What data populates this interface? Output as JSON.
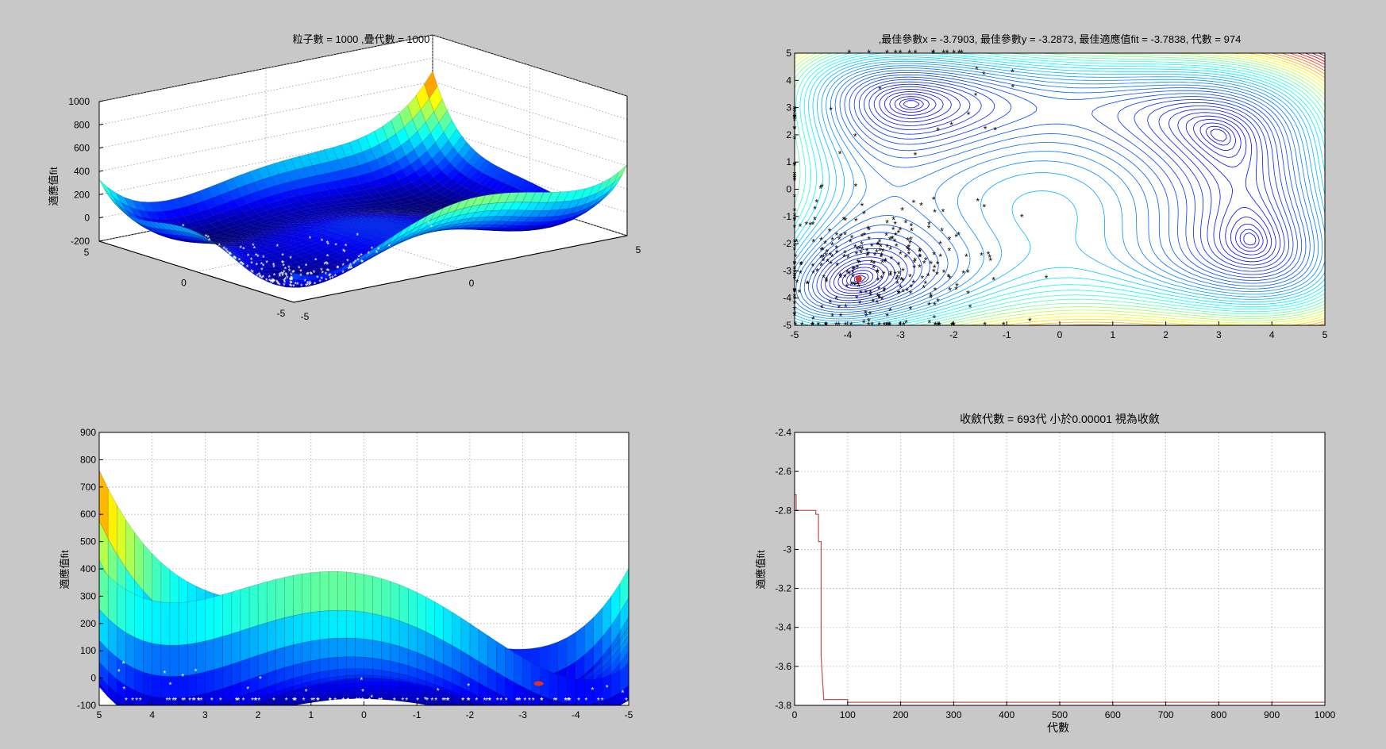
{
  "figure_background": "#c8c8c8",
  "chart_data": [
    {
      "type": "surface3d",
      "title": "粒子數 = 1000 ,疊代數 = 1000",
      "zlabel": "適應值fit",
      "z_ticks": [
        "1000",
        "800",
        "600",
        "400",
        "200",
        "0",
        "-200"
      ],
      "x_ticks": [
        "-5",
        "0",
        "5"
      ],
      "y_ticks": [
        "5",
        "0",
        "-5"
      ],
      "xlim": [
        -5,
        5
      ],
      "ylim": [
        -5,
        5
      ],
      "zlim": [
        -200,
        1000
      ],
      "function": "himmelblau",
      "particle_color": "#ffffff"
    },
    {
      "type": "contour",
      "title": ",最佳參數x = -3.7903, 最佳參數y = -3.2873, 最佳適應值fit = -3.7838, 代數 = 974",
      "x_ticks": [
        "-5",
        "-4",
        "-3",
        "-2",
        "-1",
        "0",
        "1",
        "2",
        "3",
        "4",
        "5"
      ],
      "y_ticks": [
        "5",
        "4",
        "3",
        "2",
        "1",
        "0",
        "-1",
        "-2",
        "-3",
        "-4",
        "-5"
      ],
      "xlim": [
        -5,
        5
      ],
      "ylim": [
        -5,
        5
      ],
      "best": {
        "x": -3.7903,
        "y": -3.2873
      },
      "particle_color": "#000000",
      "best_color": "#e03020"
    },
    {
      "type": "surface3d-side",
      "zlabel": "適應值fit",
      "z_ticks": [
        "900",
        "800",
        "700",
        "600",
        "500",
        "400",
        "300",
        "200",
        "100",
        "0",
        "-100"
      ],
      "x_ticks": [
        "5",
        "4",
        "3",
        "2",
        "1",
        "0",
        "-1",
        "-2",
        "-3",
        "-4",
        "-5"
      ],
      "zlim": [
        -100,
        900
      ],
      "particle_color": "#ffffff",
      "best_color": "#e03020"
    },
    {
      "type": "line",
      "title": "收斂代數 = 693代  小於0.00001 視為收斂",
      "xlabel": "代數",
      "ylabel": "適應值fit",
      "x_ticks": [
        "0",
        "100",
        "200",
        "300",
        "400",
        "500",
        "600",
        "700",
        "800",
        "900",
        "1000"
      ],
      "y_ticks": [
        "-2.4",
        "-2.6",
        "-2.8",
        "-3",
        "-3.2",
        "-3.4",
        "-3.6",
        "-3.8"
      ],
      "xlim": [
        0,
        1000
      ],
      "ylim": [
        -3.8,
        -2.4
      ],
      "line_color": "#c0504d",
      "series": [
        {
          "x": [
            0,
            3,
            3,
            40,
            40,
            45,
            45,
            50,
            50,
            55,
            100,
            100,
            1000
          ],
          "y": [
            -2.72,
            -2.72,
            -2.8,
            -2.8,
            -2.82,
            -2.82,
            -2.96,
            -2.96,
            -3.55,
            -3.77,
            -3.77,
            -3.784,
            -3.784
          ]
        }
      ]
    }
  ]
}
